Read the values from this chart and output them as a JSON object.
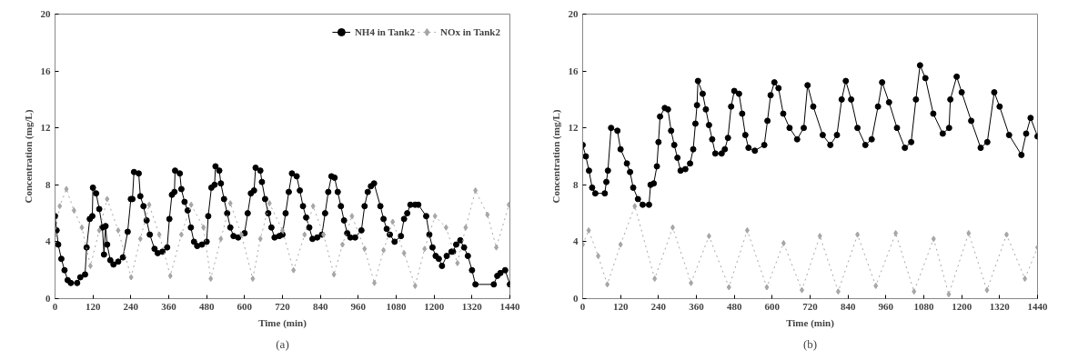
{
  "chart_data": [
    {
      "type": "line",
      "xlabel": "Time (min)",
      "ylabel": "Concentration (mg/L)",
      "annotations": [
        "(a)"
      ],
      "xlim": [
        0,
        1440
      ],
      "ylim": [
        0,
        20
      ],
      "xticks": [
        0,
        120,
        240,
        360,
        480,
        600,
        720,
        840,
        960,
        1080,
        1200,
        1320,
        1440
      ],
      "yticks": [
        0,
        4,
        8,
        12,
        16,
        20
      ],
      "grid": false,
      "legend": "top right",
      "series": [
        {
          "name": "NH4 in Tank2",
          "color": "#000000",
          "marker": "circle",
          "line_style": "solid",
          "x": [
            0,
            5,
            10,
            20,
            30,
            40,
            50,
            70,
            80,
            95,
            100,
            110,
            118,
            120,
            130,
            140,
            150,
            155,
            160,
            165,
            175,
            185,
            200,
            215,
            230,
            240,
            245,
            250,
            265,
            270,
            280,
            290,
            300,
            315,
            325,
            340,
            355,
            362,
            370,
            378,
            380,
            395,
            400,
            410,
            420,
            430,
            440,
            450,
            465,
            480,
            485,
            495,
            505,
            508,
            520,
            525,
            535,
            545,
            555,
            565,
            580,
            600,
            610,
            620,
            630,
            635,
            650,
            655,
            665,
            675,
            685,
            695,
            710,
            720,
            730,
            740,
            750,
            765,
            775,
            785,
            795,
            805,
            815,
            830,
            845,
            855,
            865,
            875,
            885,
            895,
            905,
            915,
            925,
            935,
            950,
            970,
            980,
            990,
            1000,
            1010,
            1030,
            1040,
            1050,
            1060,
            1075,
            1095,
            1105,
            1115,
            1125,
            1140,
            1150,
            1175,
            1185,
            1195,
            1205,
            1215,
            1225,
            1240,
            1255,
            1260,
            1270,
            1283,
            1295,
            1307,
            1320,
            1331,
            1389,
            1400,
            1410,
            1425,
            1440
          ],
          "values": [
            5.8,
            4.8,
            3.8,
            2.8,
            2.0,
            1.3,
            1.1,
            1.1,
            1.5,
            1.7,
            3.6,
            5.6,
            5.8,
            7.8,
            7.4,
            6.3,
            5.0,
            3.1,
            5.1,
            3.8,
            2.7,
            2.4,
            2.6,
            2.9,
            4.7,
            7.0,
            7.0,
            8.9,
            8.8,
            7.2,
            6.5,
            5.5,
            4.5,
            3.5,
            3.2,
            3.3,
            3.6,
            5.6,
            7.3,
            7.5,
            9.0,
            8.8,
            7.7,
            6.8,
            6.2,
            5.0,
            4.0,
            3.7,
            3.8,
            4.0,
            5.8,
            7.8,
            8.0,
            9.3,
            9.0,
            8.1,
            7.0,
            6.0,
            5.0,
            4.4,
            4.3,
            4.6,
            6.0,
            7.4,
            7.6,
            9.2,
            9.0,
            8.2,
            7.0,
            6.0,
            5.0,
            4.3,
            4.4,
            4.5,
            6.0,
            7.5,
            8.8,
            8.6,
            7.6,
            6.5,
            5.7,
            5.0,
            4.2,
            4.3,
            4.5,
            6.0,
            7.5,
            8.6,
            8.5,
            7.5,
            6.5,
            5.5,
            4.6,
            4.3,
            4.3,
            4.8,
            6.5,
            7.5,
            7.9,
            8.1,
            6.5,
            5.6,
            4.9,
            4.5,
            4.0,
            4.4,
            5.6,
            6.0,
            6.6,
            6.6,
            6.6,
            5.8,
            4.5,
            3.6,
            3.0,
            2.8,
            2.3,
            3.0,
            3.3,
            3.3,
            3.8,
            4.1,
            3.6,
            3.0,
            2.0,
            1.0,
            1.0,
            1.6,
            1.8,
            2.0,
            1.0
          ]
        },
        {
          "name": "NOx in Tank2",
          "color": "#a6a6a6",
          "marker": "diamond",
          "line_style": "dotted",
          "x": [
            0,
            15,
            36,
            60,
            85,
            112,
            140,
            165,
            200,
            241,
            270,
            298,
            330,
            365,
            400,
            431,
            470,
            493,
            525,
            555,
            590,
            626,
            650,
            679,
            720,
            755,
            790,
            817,
            850,
            883,
            910,
            940,
            980,
            1011,
            1040,
            1069,
            1105,
            1140,
            1170,
            1203,
            1238,
            1274,
            1300,
            1331,
            1369,
            1397,
            1437
          ],
          "values": [
            4.5,
            6.5,
            7.7,
            6.2,
            5.0,
            2.3,
            4.8,
            7.0,
            4.8,
            1.5,
            4.2,
            6.6,
            4.5,
            1.6,
            4.5,
            6.6,
            5.0,
            1.4,
            4.2,
            6.7,
            4.5,
            1.4,
            4.2,
            6.7,
            4.8,
            2.0,
            4.5,
            6.5,
            4.5,
            1.7,
            3.8,
            5.8,
            3.5,
            1.1,
            3.4,
            5.4,
            3.2,
            0.9,
            3.5,
            5.8,
            5.0,
            2.5,
            5.0,
            7.6,
            5.9,
            3.6,
            6.6
          ]
        }
      ]
    },
    {
      "type": "line",
      "xlabel": "Time (min)",
      "ylabel": "Concentration (mg/L)",
      "annotations": [
        "(b)"
      ],
      "xlim": [
        0,
        1440
      ],
      "ylim": [
        0,
        20
      ],
      "xticks": [
        0,
        120,
        240,
        360,
        480,
        600,
        720,
        840,
        960,
        1080,
        1200,
        1320,
        1440
      ],
      "yticks": [
        0,
        4,
        8,
        12,
        16,
        20
      ],
      "grid": false,
      "series": [
        {
          "color": "#000000",
          "marker": "circle",
          "line_style": "solid",
          "x": [
            0,
            10,
            20,
            30,
            40,
            70,
            75,
            80,
            90,
            110,
            120,
            140,
            150,
            160,
            175,
            190,
            210,
            215,
            225,
            235,
            240,
            245,
            260,
            270,
            280,
            290,
            300,
            310,
            325,
            340,
            350,
            357,
            362,
            365,
            380,
            390,
            400,
            410,
            420,
            440,
            450,
            460,
            470,
            480,
            495,
            505,
            515,
            525,
            545,
            575,
            585,
            595,
            607,
            620,
            635,
            655,
            679,
            700,
            712,
            730,
            760,
            784,
            805,
            820,
            833,
            850,
            870,
            895,
            915,
            935,
            948,
            970,
            995,
            1020,
            1040,
            1055,
            1068,
            1085,
            1110,
            1140,
            1160,
            1164,
            1184,
            1200,
            1230,
            1260,
            1281,
            1303,
            1320,
            1350,
            1389,
            1404,
            1418,
            1440
          ],
          "values": [
            10.8,
            10.0,
            9.0,
            7.8,
            7.4,
            7.4,
            8.2,
            9.0,
            12.0,
            11.8,
            10.5,
            9.5,
            8.9,
            7.8,
            7.0,
            6.6,
            6.6,
            8.0,
            8.1,
            9.3,
            11.0,
            12.8,
            13.4,
            13.3,
            11.8,
            10.8,
            9.9,
            9.0,
            9.1,
            9.5,
            10.5,
            12.3,
            13.6,
            15.3,
            14.4,
            13.3,
            12.2,
            11.2,
            10.2,
            10.2,
            10.5,
            11.3,
            13.5,
            14.6,
            14.4,
            13.0,
            11.5,
            10.6,
            10.4,
            10.8,
            12.5,
            14.3,
            15.2,
            14.8,
            13.0,
            12.0,
            11.2,
            12.0,
            15.0,
            13.5,
            11.5,
            10.8,
            11.5,
            14.0,
            15.3,
            14.0,
            12.0,
            10.8,
            11.2,
            13.5,
            15.2,
            13.8,
            12.0,
            10.6,
            11.0,
            14.0,
            16.4,
            15.5,
            13.0,
            11.6,
            12.0,
            14.0,
            15.6,
            14.5,
            12.5,
            10.6,
            11.0,
            14.5,
            13.5,
            11.5,
            10.1,
            11.6,
            12.7,
            11.4
          ]
        },
        {
          "color": "#a6a6a6",
          "marker": "diamond",
          "line_style": "dotted",
          "x": [
            0,
            19,
            49,
            78,
            120,
            165,
            228,
            285,
            343,
            400,
            463,
            521,
            583,
            636,
            694,
            751,
            809,
            870,
            928,
            991,
            1049,
            1111,
            1159,
            1222,
            1280,
            1342,
            1400,
            1440
          ],
          "values": [
            3.8,
            4.8,
            3.0,
            1.0,
            3.8,
            6.5,
            1.4,
            5.0,
            1.1,
            4.4,
            0.8,
            4.8,
            0.8,
            3.9,
            0.6,
            4.4,
            0.5,
            4.5,
            0.9,
            4.6,
            0.5,
            4.2,
            0.3,
            4.6,
            0.6,
            4.5,
            1.4,
            3.6
          ]
        }
      ]
    }
  ]
}
